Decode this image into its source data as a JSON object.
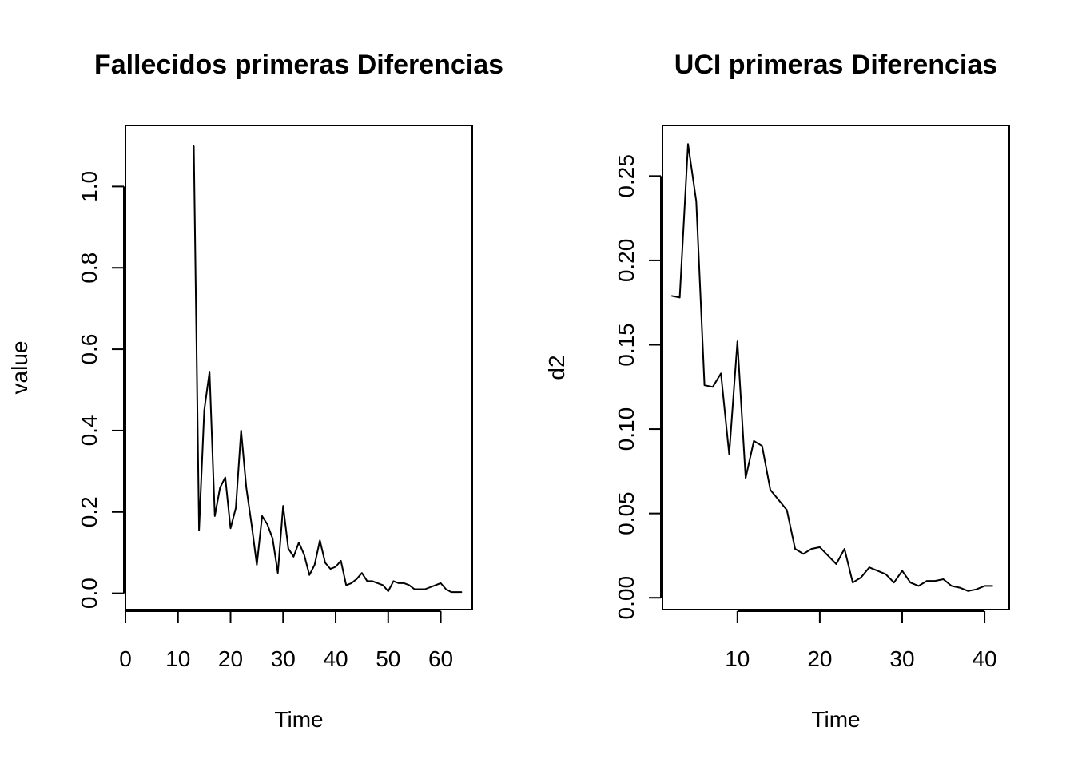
{
  "chart_data": [
    {
      "type": "line",
      "title": "Fallecidos primeras Diferencias",
      "xlabel": "Time",
      "ylabel": "value",
      "xlim": [
        0,
        66
      ],
      "ylim": [
        -0.04,
        1.15
      ],
      "xticks": [
        "0",
        "10",
        "20",
        "30",
        "40",
        "50",
        "60"
      ],
      "yticks": [
        "0.0",
        "0.2",
        "0.4",
        "0.6",
        "0.8",
        "1.0"
      ],
      "series": [
        {
          "x": [
            13,
            14,
            15,
            16,
            17,
            18,
            19,
            20,
            21,
            22,
            23,
            24,
            25,
            26,
            27,
            28,
            29,
            30,
            31,
            32,
            33,
            34,
            35,
            36,
            37,
            38,
            39,
            40,
            41,
            42,
            43,
            44,
            45,
            46,
            47,
            48,
            49,
            50,
            51,
            52,
            53,
            54,
            55,
            56,
            57,
            58,
            59,
            60,
            61,
            62,
            63,
            64
          ],
          "y": [
            1.1,
            0.155,
            0.45,
            0.545,
            0.19,
            0.26,
            0.285,
            0.16,
            0.21,
            0.4,
            0.26,
            0.17,
            0.07,
            0.19,
            0.17,
            0.135,
            0.05,
            0.215,
            0.11,
            0.09,
            0.125,
            0.095,
            0.045,
            0.07,
            0.13,
            0.075,
            0.06,
            0.065,
            0.08,
            0.02,
            0.025,
            0.035,
            0.05,
            0.03,
            0.03,
            0.025,
            0.02,
            0.005,
            0.03,
            0.025,
            0.025,
            0.02,
            0.01,
            0.01,
            0.01,
            0.015,
            0.02,
            0.025,
            0.01,
            0.003,
            0.003,
            0.003
          ]
        }
      ]
    },
    {
      "type": "line",
      "title": "UCI primeras Diferencias",
      "xlabel": "Time",
      "ylabel": "d2",
      "xlim": [
        0.9,
        43
      ],
      "ylim": [
        -0.007,
        0.28
      ],
      "xticks": [
        "10",
        "20",
        "30",
        "40"
      ],
      "yticks": [
        "0.00",
        "0.05",
        "0.10",
        "0.15",
        "0.20",
        "0.25"
      ],
      "series": [
        {
          "x": [
            2,
            3,
            4,
            5,
            6,
            7,
            8,
            9,
            10,
            11,
            12,
            13,
            14,
            15,
            16,
            17,
            18,
            19,
            20,
            21,
            22,
            23,
            24,
            25,
            26,
            27,
            28,
            29,
            30,
            31,
            32,
            33,
            34,
            35,
            36,
            37,
            38,
            39,
            40,
            41
          ],
          "y": [
            0.179,
            0.178,
            0.269,
            0.235,
            0.126,
            0.125,
            0.133,
            0.085,
            0.152,
            0.071,
            0.093,
            0.09,
            0.064,
            0.058,
            0.052,
            0.029,
            0.026,
            0.029,
            0.03,
            0.025,
            0.02,
            0.029,
            0.009,
            0.012,
            0.018,
            0.016,
            0.014,
            0.009,
            0.016,
            0.009,
            0.007,
            0.01,
            0.01,
            0.011,
            0.007,
            0.006,
            0.004,
            0.005,
            0.007,
            0.007
          ]
        }
      ]
    }
  ]
}
